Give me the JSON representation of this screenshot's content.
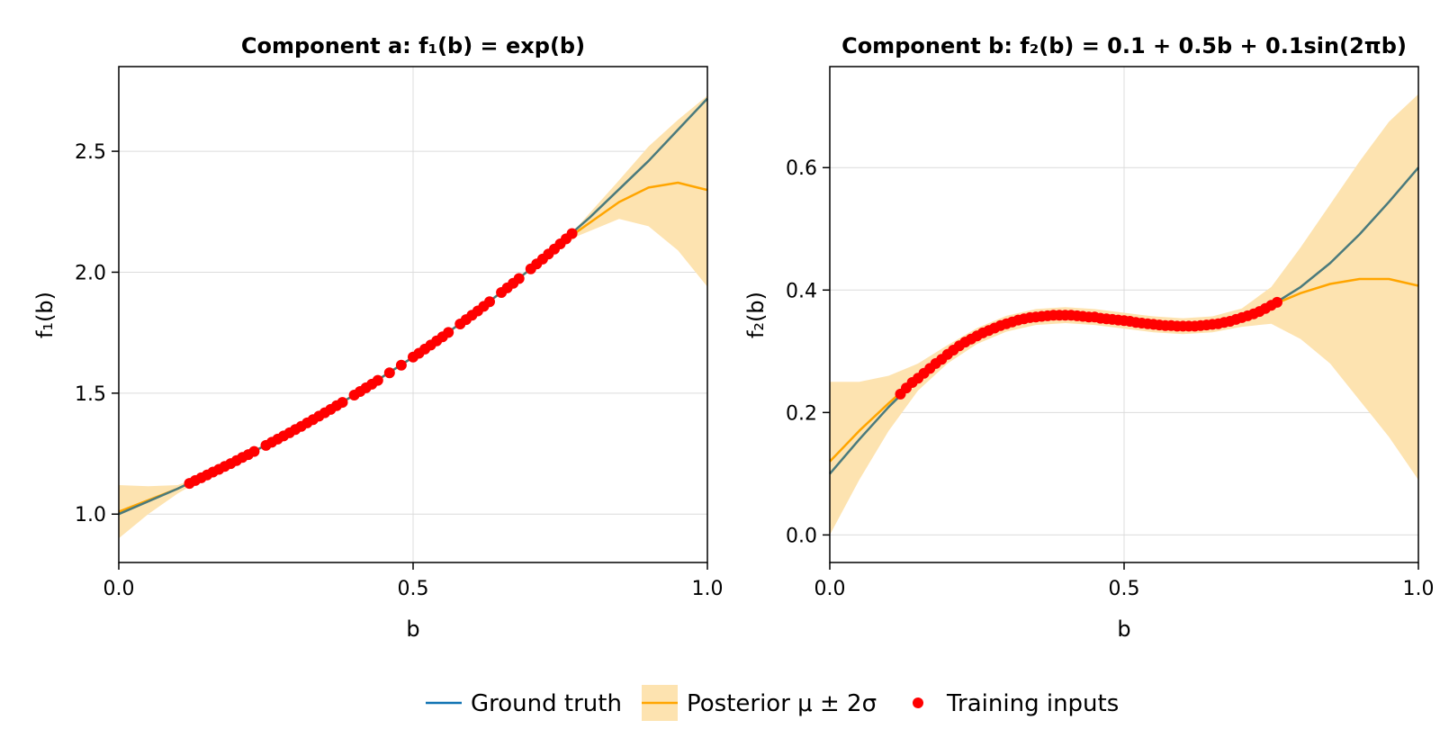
{
  "colors": {
    "ground_truth": "#4a7a7c",
    "legend_ground_truth": "#0f72b2",
    "posterior_mean": "#ffa500",
    "posterior_band": "#fde3b0",
    "training_points": "#ff0000",
    "grid": "#dcdcdc"
  },
  "legend": {
    "ground_truth": "Ground truth",
    "posterior": "Posterior μ ± 2σ",
    "training": "Training inputs"
  },
  "chart_data": [
    {
      "type": "line",
      "title": "Component a:  f₁(b) = exp(b)",
      "xlabel": "b",
      "ylabel": "f₁(b)",
      "xlim": [
        0,
        1
      ],
      "ylim": [
        0.8,
        2.85
      ],
      "xticks": [
        0,
        0.5,
        1
      ],
      "xtick_labels": [
        "0.0",
        "0.5",
        "1.0"
      ],
      "yticks": [
        1.0,
        1.5,
        2.0,
        2.5
      ],
      "ytick_labels": [
        "1.0",
        "1.5",
        "2.0",
        "2.5"
      ],
      "grid": true,
      "series": [
        {
          "name": "Ground truth",
          "x": [
            0,
            0.1,
            0.2,
            0.3,
            0.4,
            0.5,
            0.6,
            0.7,
            0.8,
            0.9,
            1.0
          ],
          "y": [
            1.0,
            1.105,
            1.221,
            1.35,
            1.492,
            1.649,
            1.822,
            2.014,
            2.226,
            2.46,
            2.718
          ]
        },
        {
          "name": "Posterior μ",
          "x": [
            0,
            0.1,
            0.2,
            0.3,
            0.4,
            0.5,
            0.6,
            0.7,
            0.78,
            0.85,
            0.9,
            0.95,
            1.0
          ],
          "y": [
            1.01,
            1.105,
            1.221,
            1.35,
            1.492,
            1.649,
            1.822,
            2.014,
            2.17,
            2.29,
            2.35,
            2.37,
            2.34
          ]
        },
        {
          "name": "Posterior μ + 2σ",
          "x": [
            0,
            0.05,
            0.1,
            0.15,
            0.2,
            0.3,
            0.4,
            0.5,
            0.6,
            0.7,
            0.78,
            0.85,
            0.9,
            0.95,
            1.0
          ],
          "y": [
            1.12,
            1.115,
            1.12,
            1.165,
            1.225,
            1.355,
            1.497,
            1.654,
            1.827,
            2.02,
            2.19,
            2.38,
            2.52,
            2.63,
            2.73
          ]
        },
        {
          "name": "Posterior μ − 2σ",
          "x": [
            0,
            0.05,
            0.1,
            0.15,
            0.2,
            0.3,
            0.4,
            0.5,
            0.6,
            0.7,
            0.78,
            0.85,
            0.9,
            0.95,
            1.0
          ],
          "y": [
            0.9,
            1.0,
            1.085,
            1.155,
            1.217,
            1.345,
            1.487,
            1.644,
            1.817,
            2.008,
            2.15,
            2.22,
            2.19,
            2.09,
            1.94
          ]
        }
      ],
      "points": {
        "name": "Training inputs",
        "x": [
          0.12,
          0.13,
          0.14,
          0.15,
          0.16,
          0.17,
          0.18,
          0.19,
          0.2,
          0.21,
          0.22,
          0.23,
          0.25,
          0.26,
          0.27,
          0.28,
          0.29,
          0.3,
          0.31,
          0.32,
          0.33,
          0.34,
          0.35,
          0.36,
          0.37,
          0.38,
          0.4,
          0.41,
          0.42,
          0.43,
          0.44,
          0.46,
          0.48,
          0.5,
          0.51,
          0.52,
          0.53,
          0.54,
          0.55,
          0.56,
          0.58,
          0.59,
          0.6,
          0.61,
          0.62,
          0.63,
          0.65,
          0.66,
          0.67,
          0.68,
          0.7,
          0.71,
          0.72,
          0.73,
          0.74,
          0.75,
          0.76,
          0.77
        ],
        "y": [
          1.127,
          1.139,
          1.15,
          1.162,
          1.174,
          1.185,
          1.197,
          1.209,
          1.221,
          1.234,
          1.246,
          1.259,
          1.284,
          1.297,
          1.31,
          1.323,
          1.336,
          1.35,
          1.363,
          1.377,
          1.391,
          1.405,
          1.419,
          1.433,
          1.448,
          1.462,
          1.492,
          1.507,
          1.522,
          1.537,
          1.553,
          1.584,
          1.616,
          1.649,
          1.665,
          1.682,
          1.699,
          1.716,
          1.733,
          1.751,
          1.786,
          1.804,
          1.822,
          1.84,
          1.859,
          1.878,
          1.916,
          1.935,
          1.954,
          1.974,
          2.014,
          2.034,
          2.054,
          2.075,
          2.096,
          2.117,
          2.138,
          2.16
        ]
      }
    },
    {
      "type": "line",
      "title": "Component b:  f₂(b) = 0.1 + 0.5b + 0.1sin(2πb)",
      "xlabel": "b",
      "ylabel": "f₂(b)",
      "xlim": [
        0,
        1
      ],
      "ylim": [
        -0.045,
        0.765
      ],
      "xticks": [
        0,
        0.5,
        1
      ],
      "xtick_labels": [
        "0.0",
        "0.5",
        "1.0"
      ],
      "yticks": [
        0.0,
        0.2,
        0.4,
        0.6
      ],
      "ytick_labels": [
        "0.0",
        "0.2",
        "0.4",
        "0.6"
      ],
      "grid": true,
      "series": [
        {
          "name": "Ground truth",
          "x": [
            0,
            0.05,
            0.1,
            0.15,
            0.2,
            0.25,
            0.3,
            0.35,
            0.4,
            0.45,
            0.5,
            0.55,
            0.6,
            0.65,
            0.7,
            0.75,
            0.8,
            0.85,
            0.9,
            0.95,
            1.0
          ],
          "y": [
            0.1,
            0.156,
            0.209,
            0.256,
            0.295,
            0.325,
            0.345,
            0.356,
            0.359,
            0.356,
            0.35,
            0.344,
            0.341,
            0.344,
            0.355,
            0.375,
            0.405,
            0.444,
            0.491,
            0.544,
            0.6
          ]
        },
        {
          "name": "Posterior μ",
          "x": [
            0,
            0.05,
            0.1,
            0.15,
            0.2,
            0.25,
            0.3,
            0.35,
            0.4,
            0.45,
            0.5,
            0.55,
            0.6,
            0.65,
            0.7,
            0.75,
            0.8,
            0.85,
            0.9,
            0.95,
            1.0
          ],
          "y": [
            0.12,
            0.17,
            0.215,
            0.258,
            0.295,
            0.325,
            0.345,
            0.356,
            0.359,
            0.356,
            0.35,
            0.344,
            0.341,
            0.344,
            0.355,
            0.375,
            0.395,
            0.41,
            0.418,
            0.418,
            0.407
          ]
        },
        {
          "name": "Posterior μ + 2σ",
          "x": [
            0,
            0.05,
            0.1,
            0.15,
            0.2,
            0.25,
            0.3,
            0.35,
            0.4,
            0.45,
            0.5,
            0.55,
            0.6,
            0.65,
            0.7,
            0.75,
            0.8,
            0.85,
            0.9,
            0.95,
            1.0
          ],
          "y": [
            0.25,
            0.25,
            0.26,
            0.28,
            0.31,
            0.338,
            0.358,
            0.369,
            0.372,
            0.369,
            0.363,
            0.357,
            0.354,
            0.357,
            0.37,
            0.405,
            0.47,
            0.54,
            0.61,
            0.675,
            0.72
          ]
        },
        {
          "name": "Posterior μ − 2σ",
          "x": [
            0,
            0.05,
            0.1,
            0.15,
            0.2,
            0.25,
            0.3,
            0.35,
            0.4,
            0.45,
            0.5,
            0.55,
            0.6,
            0.65,
            0.7,
            0.75,
            0.8,
            0.85,
            0.9,
            0.95,
            1.0
          ],
          "y": [
            0.0,
            0.09,
            0.17,
            0.236,
            0.28,
            0.312,
            0.332,
            0.343,
            0.346,
            0.343,
            0.337,
            0.331,
            0.328,
            0.331,
            0.34,
            0.345,
            0.32,
            0.28,
            0.22,
            0.16,
            0.09
          ]
        }
      ],
      "points": {
        "name": "Training inputs",
        "x": [
          0.12,
          0.13,
          0.14,
          0.15,
          0.16,
          0.17,
          0.18,
          0.19,
          0.2,
          0.21,
          0.22,
          0.23,
          0.24,
          0.25,
          0.26,
          0.27,
          0.28,
          0.29,
          0.3,
          0.31,
          0.32,
          0.33,
          0.34,
          0.35,
          0.36,
          0.37,
          0.38,
          0.39,
          0.4,
          0.41,
          0.42,
          0.43,
          0.44,
          0.45,
          0.46,
          0.47,
          0.48,
          0.49,
          0.5,
          0.51,
          0.52,
          0.53,
          0.54,
          0.55,
          0.56,
          0.57,
          0.58,
          0.59,
          0.6,
          0.61,
          0.62,
          0.63,
          0.64,
          0.65,
          0.66,
          0.67,
          0.68,
          0.69,
          0.7,
          0.71,
          0.72,
          0.73,
          0.74,
          0.75,
          0.76
        ],
        "y": [
          0.23,
          0.24,
          0.249,
          0.256,
          0.264,
          0.272,
          0.28,
          0.287,
          0.295,
          0.302,
          0.309,
          0.315,
          0.32,
          0.325,
          0.33,
          0.334,
          0.338,
          0.342,
          0.345,
          0.348,
          0.351,
          0.353,
          0.355,
          0.356,
          0.357,
          0.358,
          0.359,
          0.359,
          0.359,
          0.359,
          0.358,
          0.357,
          0.356,
          0.356,
          0.354,
          0.353,
          0.352,
          0.351,
          0.35,
          0.349,
          0.347,
          0.346,
          0.345,
          0.344,
          0.343,
          0.342,
          0.342,
          0.341,
          0.341,
          0.341,
          0.341,
          0.342,
          0.343,
          0.344,
          0.345,
          0.347,
          0.349,
          0.352,
          0.355,
          0.358,
          0.361,
          0.365,
          0.37,
          0.375,
          0.38
        ]
      }
    }
  ]
}
